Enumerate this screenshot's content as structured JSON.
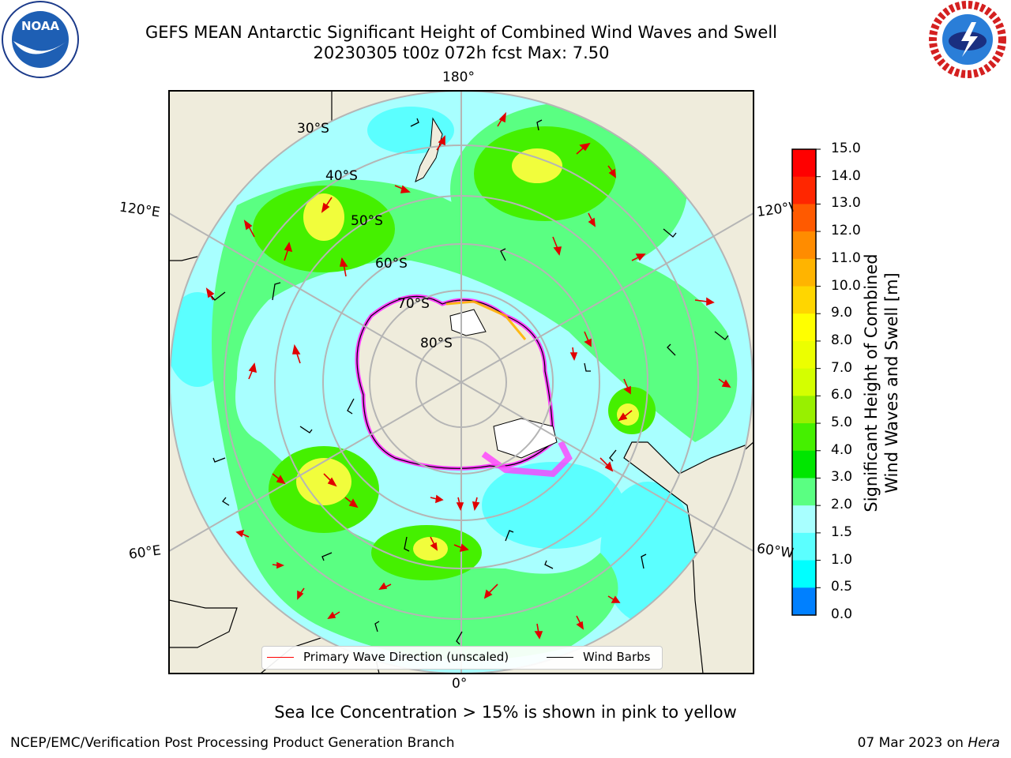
{
  "title": {
    "line1": "GEFS MEAN Antarctic Significant Height of Combined Wind Waves and Swell",
    "line2": "20230305 t00z 072h fcst   Max: 7.50"
  },
  "map": {
    "projection": "south-polar-stereographic",
    "longitude_labels": {
      "top": "180°",
      "bottom": "0°",
      "upper_left": "120°E",
      "lower_left": "60°E",
      "upper_right": "120°W",
      "lower_right": "60°W"
    },
    "latitude_labels": [
      "30°S",
      "40°S",
      "50°S",
      "60°S",
      "70°S",
      "80°S"
    ],
    "colors": {
      "land": "#efecdc",
      "ocean_low": "#a7ffff",
      "ocean_mid": "#5fff80",
      "ocean_high": "#2bef2b",
      "peak": "#f1fd3c",
      "sea_ice": "#ff40ff",
      "grid": "#b5b5b5"
    }
  },
  "colorbar": {
    "ticks": [
      "15.0",
      "14.0",
      "13.0",
      "12.0",
      "11.0",
      "10.0",
      "9.0",
      "8.0",
      "7.0",
      "6.0",
      "5.0",
      "4.0",
      "3.0",
      "2.0",
      "1.5",
      "1.0",
      "0.5",
      "0.0"
    ],
    "colors": [
      "#ff0000",
      "#ff2600",
      "#ff5a00",
      "#ff8c00",
      "#ffb400",
      "#ffd600",
      "#ffff00",
      "#ecff00",
      "#d4ff00",
      "#98f000",
      "#45f000",
      "#00e600",
      "#5aff82",
      "#a8ffff",
      "#5bffff",
      "#00ffff",
      "#0080ff",
      "#0000ff"
    ],
    "label_line1": "Significant Height of Combined",
    "label_line2": "Wind Waves and Swell [m]"
  },
  "legend": {
    "primary_wave": "Primary Wave Direction (unscaled)",
    "wind_barbs": "Wind Barbs",
    "primary_wave_color": "#ff0000",
    "wind_barbs_color": "#000000"
  },
  "footnote": "Sea Ice Concentration > 15% is shown in pink to yellow",
  "credit": {
    "left": "NCEP/EMC/Verification Post Processing Product Generation Branch",
    "right_date": "07 Mar 2023 on ",
    "right_host": "Hera"
  },
  "logos": {
    "noaa_text": "NOAA",
    "nws_text": "NATIONAL WEATHER SERVICE"
  }
}
